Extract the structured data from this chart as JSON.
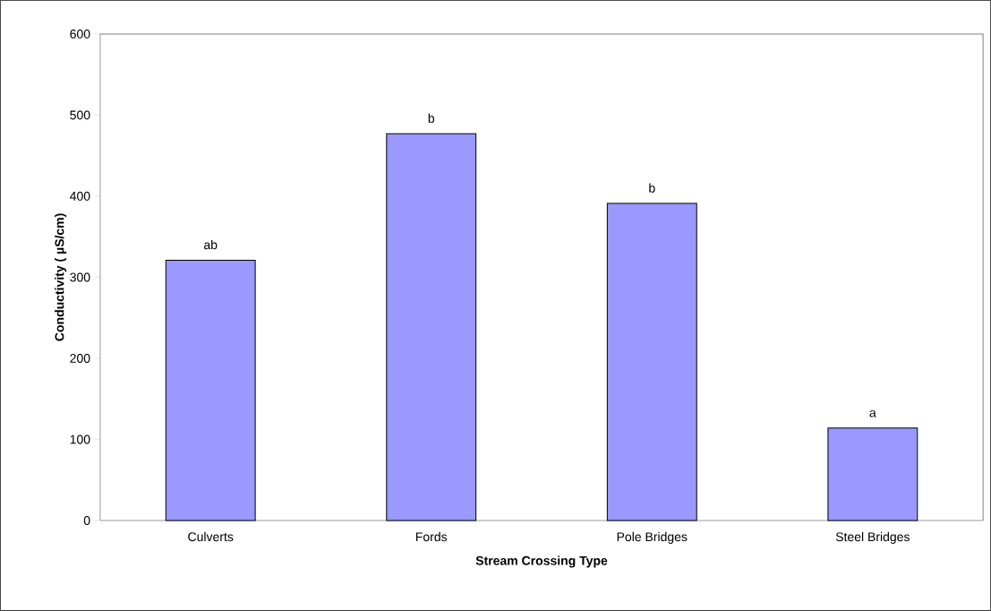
{
  "chart_data": {
    "type": "bar",
    "xlabel": "Stream Crossing Type",
    "ylabel": "Conductivity ( µS/cm)",
    "categories": [
      "Culverts",
      "Fords",
      "Pole Bridges",
      "Steel Bridges"
    ],
    "values": [
      321,
      477,
      391,
      114
    ],
    "color": "#9999ff",
    "ylim": [
      0,
      600
    ],
    "yticks": [
      0,
      100,
      200,
      300,
      400,
      500,
      600
    ],
    "annotations": [
      {
        "text": "ab",
        "x": "Culverts",
        "y": 321
      },
      {
        "text": "b",
        "x": "Fords",
        "y": 477
      },
      {
        "text": "b",
        "x": "Pole Bridges",
        "y": 391
      },
      {
        "text": "a",
        "x": "Steel Bridges",
        "y": 114
      }
    ]
  }
}
